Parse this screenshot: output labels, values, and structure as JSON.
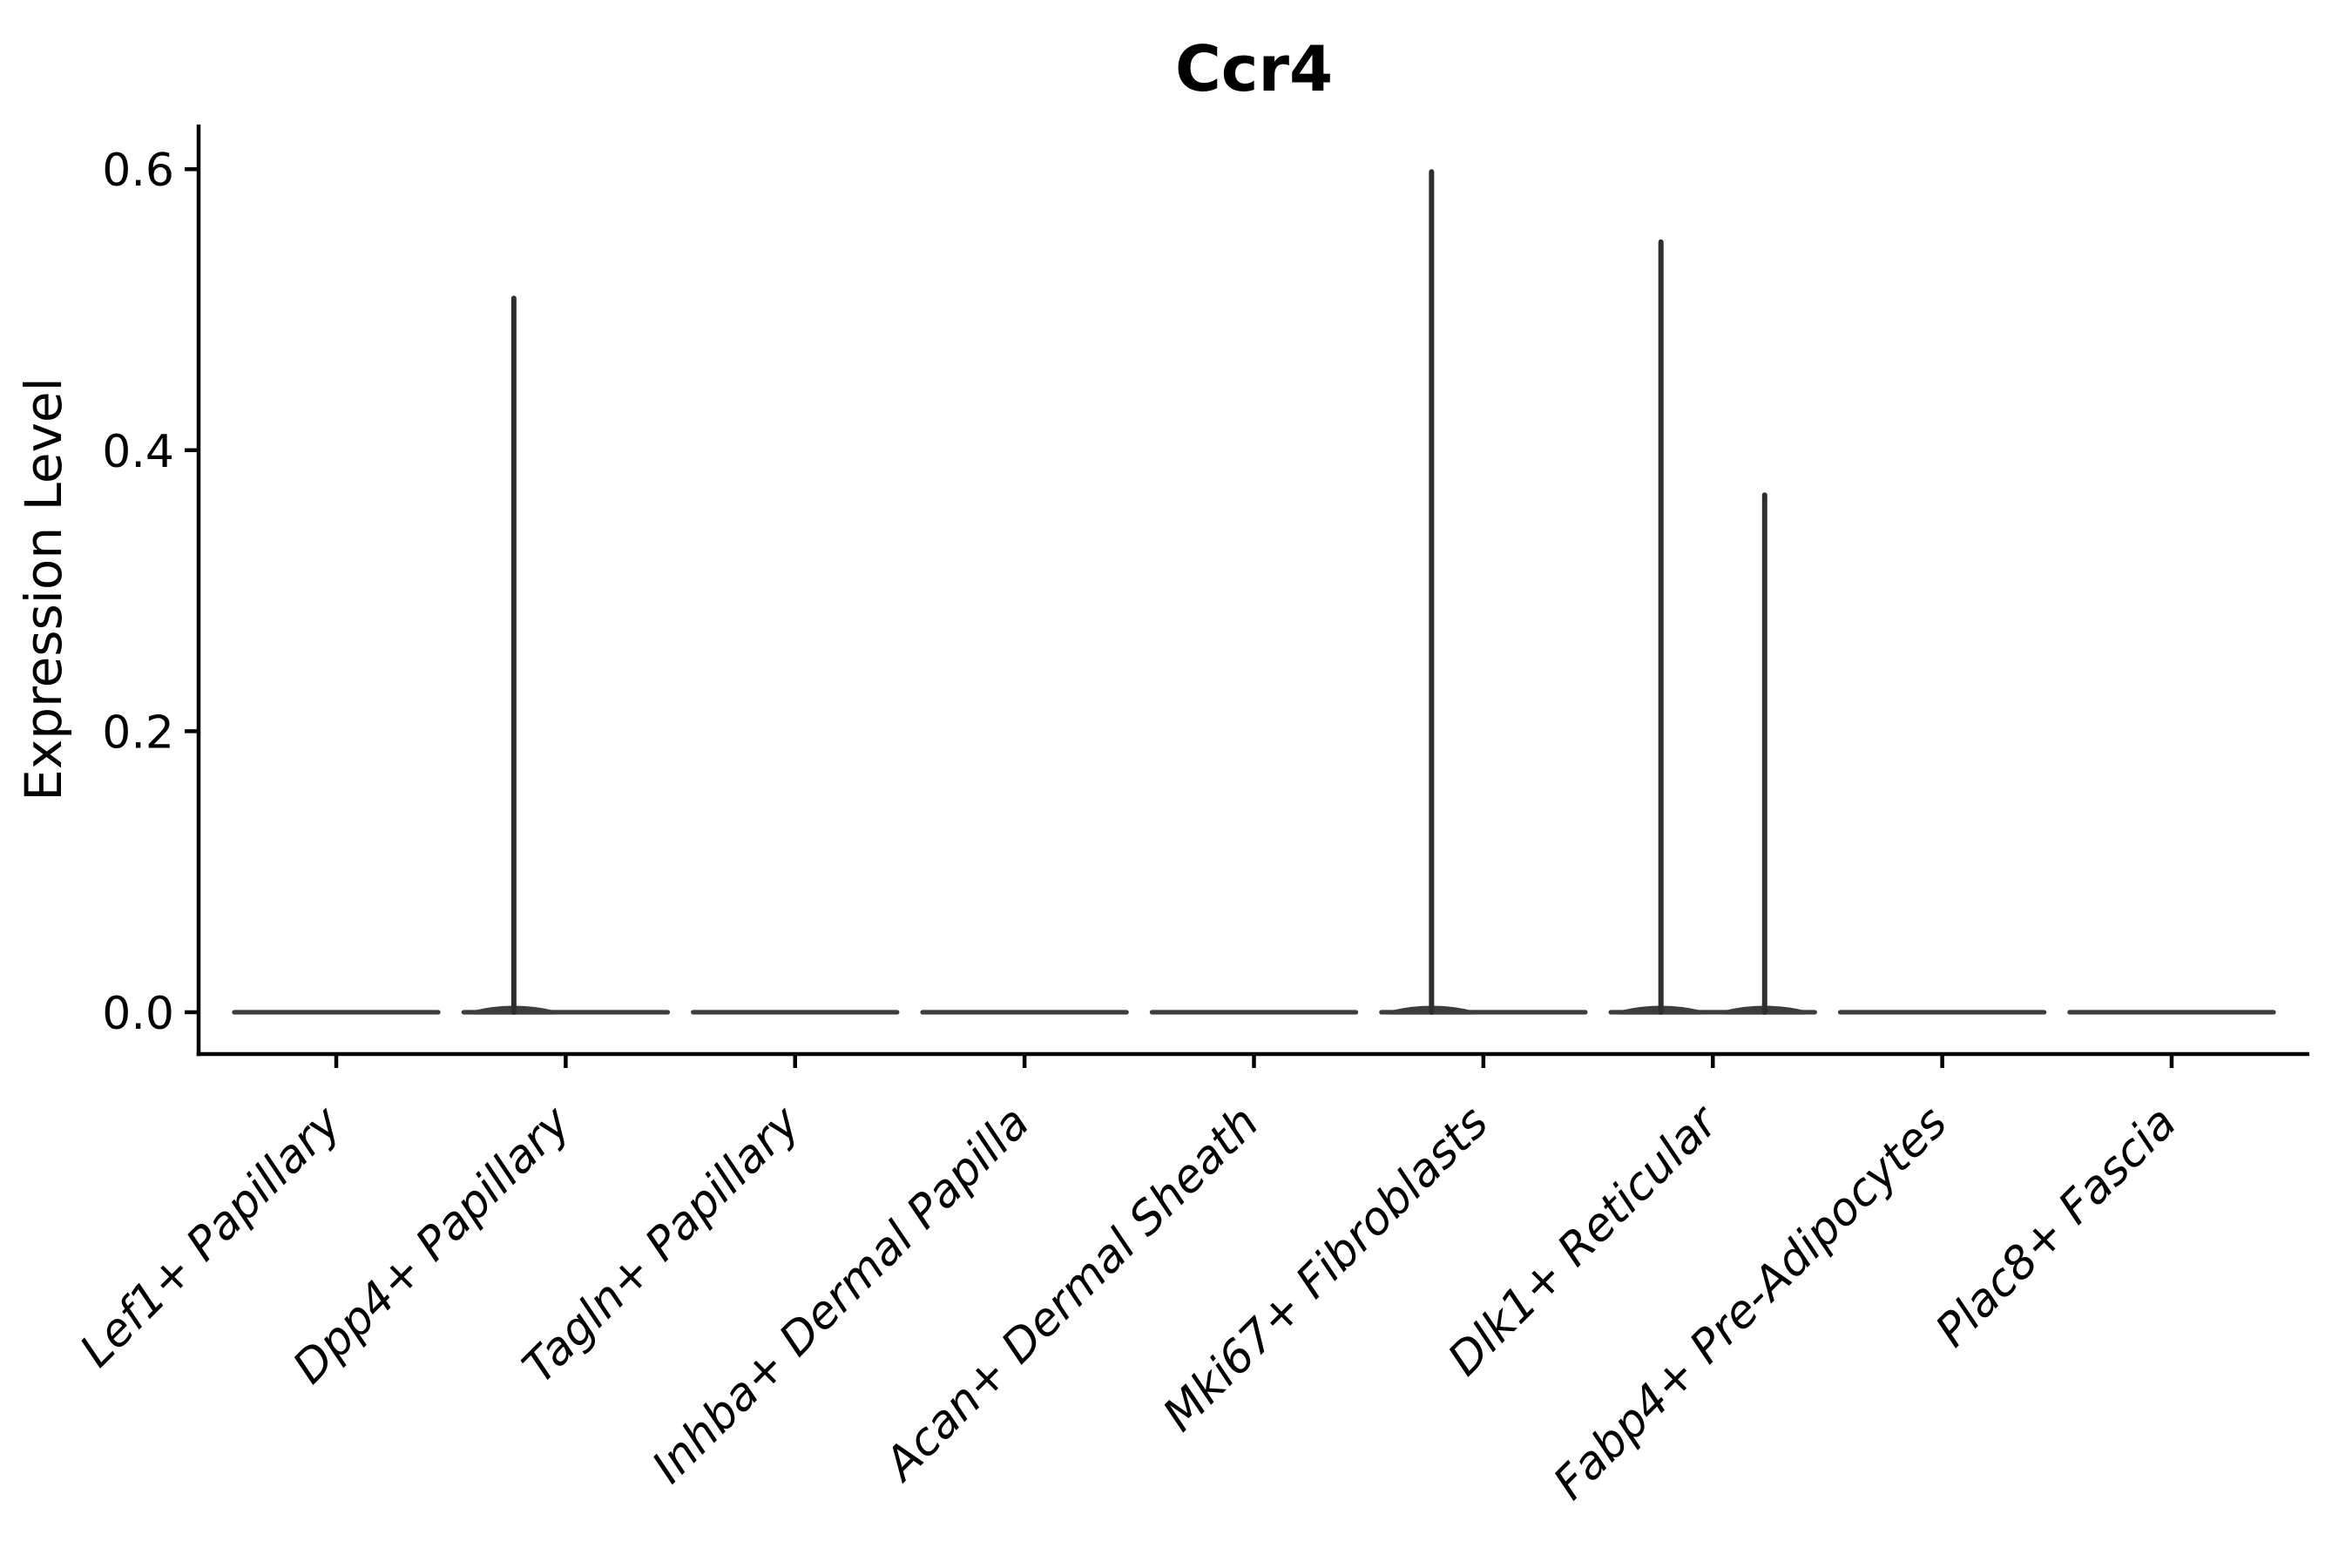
{
  "chart_data": {
    "type": "violin",
    "title": "Ccr4",
    "ylabel": "Expression Level",
    "ytick_labels": [
      "0.0",
      "0.2",
      "0.4",
      "0.6"
    ],
    "ylim": [
      0.0,
      0.63
    ],
    "baseline_value": 0.0,
    "x_tick_label_rotation_degrees": 45,
    "x_tick_label_style": "italic",
    "legend": "none",
    "grid": "off",
    "violins": [
      {
        "label": "Lef1+ Papillary",
        "body_at": 0.0,
        "spikes": []
      },
      {
        "label": "Dpp4+ Papillary",
        "body_at": 0.0,
        "spikes": [
          {
            "side": "left",
            "max": 0.51
          }
        ]
      },
      {
        "label": "Tagln+ Papillary",
        "body_at": 0.0,
        "spikes": []
      },
      {
        "label": "Inhba+ Dermal Papilla",
        "body_at": 0.0,
        "spikes": []
      },
      {
        "label": "Acan+ Dermal Sheath",
        "body_at": 0.0,
        "spikes": []
      },
      {
        "label": "Mki67+ Fibroblasts",
        "body_at": 0.0,
        "spikes": [
          {
            "side": "left",
            "max": 0.6
          }
        ]
      },
      {
        "label": "Dlk1+ Reticular",
        "body_at": 0.0,
        "spikes": [
          {
            "side": "left",
            "max": 0.55
          },
          {
            "side": "right",
            "max": 0.37
          }
        ]
      },
      {
        "label": "Fabp4+ Pre-Adipocytes",
        "body_at": 0.0,
        "spikes": []
      },
      {
        "label": "Plac8+ Fascia",
        "body_at": 0.0,
        "spikes": []
      }
    ],
    "colors": {
      "violin_body": "#3d3d3d",
      "spike": "#2e2e2e",
      "axis": "#000000",
      "text": "#000000",
      "background": "#ffffff"
    }
  }
}
